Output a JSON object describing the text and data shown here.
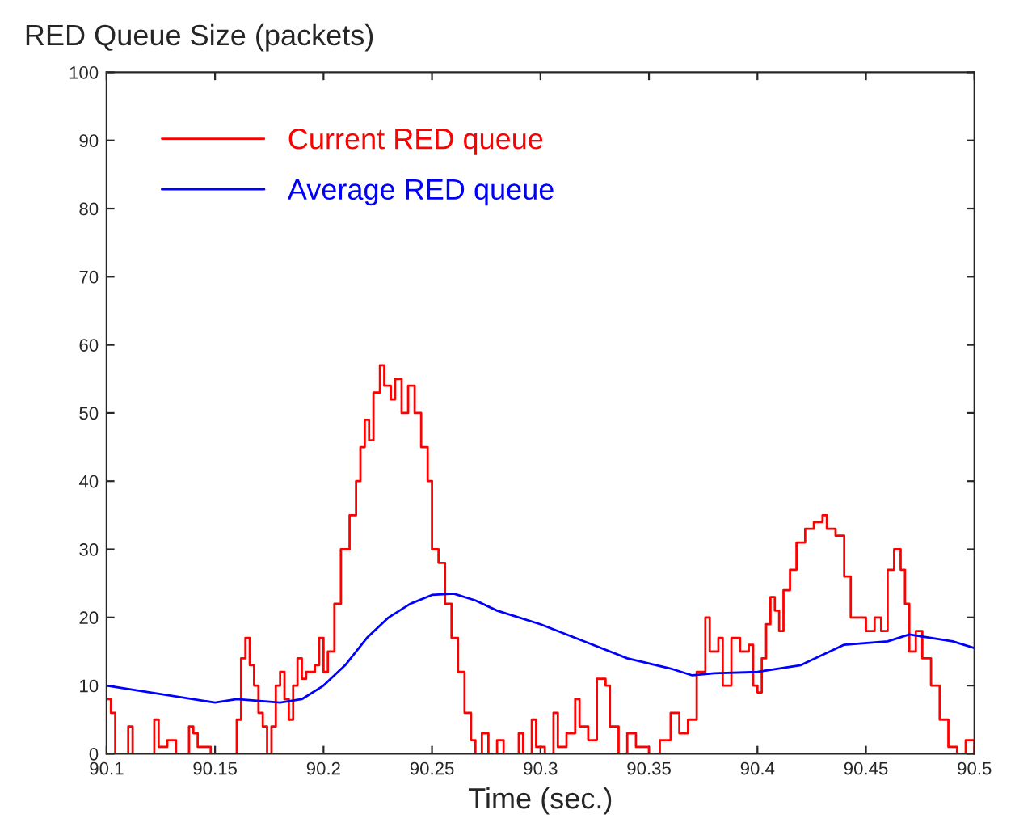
{
  "chart_data": {
    "type": "line",
    "title": "RED Queue Size (packets)",
    "xlabel": "Time (sec.)",
    "xlim": [
      90.1,
      90.5
    ],
    "ylim": [
      0,
      100
    ],
    "xticks": [
      90.1,
      90.15,
      90.2,
      90.25,
      90.3,
      90.35,
      90.4,
      90.45,
      90.5
    ],
    "yticks": [
      0,
      10,
      20,
      30,
      40,
      50,
      60,
      70,
      80,
      90,
      100
    ],
    "grid": false,
    "legend": "top left",
    "series": [
      {
        "name": "Current RED queue",
        "type": "step",
        "color": "#ff0000",
        "x": [
          90.1,
          90.102,
          90.104,
          90.108,
          90.11,
          90.112,
          90.118,
          90.122,
          90.124,
          90.128,
          90.132,
          90.138,
          90.14,
          90.142,
          90.148,
          90.158,
          90.16,
          90.162,
          90.164,
          90.166,
          90.168,
          90.17,
          90.172,
          90.174,
          90.176,
          90.178,
          90.18,
          90.182,
          90.184,
          90.186,
          90.188,
          90.19,
          90.192,
          90.196,
          90.198,
          90.2,
          90.202,
          90.205,
          90.208,
          90.212,
          90.215,
          90.217,
          90.219,
          90.221,
          90.223,
          90.226,
          90.228,
          90.231,
          90.233,
          90.236,
          90.239,
          90.242,
          90.245,
          90.248,
          90.25,
          90.253,
          90.256,
          90.259,
          90.262,
          90.265,
          90.268,
          90.27,
          90.273,
          90.276,
          90.28,
          90.283,
          90.287,
          90.29,
          90.292,
          90.296,
          90.298,
          90.302,
          90.306,
          90.308,
          90.312,
          90.316,
          90.318,
          90.322,
          90.326,
          90.33,
          90.332,
          90.336,
          90.34,
          90.344,
          90.35,
          90.355,
          90.36,
          90.364,
          90.368,
          90.372,
          90.376,
          90.378,
          90.382,
          90.384,
          90.388,
          90.392,
          90.396,
          90.398,
          90.4,
          90.402,
          90.404,
          90.406,
          90.408,
          90.41,
          90.412,
          90.415,
          90.418,
          90.422,
          90.426,
          90.43,
          90.432,
          90.436,
          90.44,
          90.443,
          90.446,
          90.45,
          90.454,
          90.457,
          90.46,
          90.463,
          90.466,
          90.468,
          90.47,
          90.473,
          90.476,
          90.48,
          90.484,
          90.488,
          90.492,
          90.496,
          90.5
        ],
        "values": [
          8,
          6,
          0,
          0,
          4,
          0,
          0,
          5,
          1,
          2,
          0,
          4,
          3,
          1,
          0,
          0,
          5,
          14,
          17,
          13,
          10,
          6,
          4,
          0,
          4,
          10,
          12,
          8,
          5,
          10,
          14,
          11,
          12,
          13,
          17,
          12,
          15,
          22,
          30,
          35,
          40,
          45,
          49,
          46,
          53,
          57,
          54,
          52,
          55,
          50,
          54,
          50,
          45,
          40,
          30,
          28,
          22,
          17,
          12,
          6,
          2,
          0,
          3,
          0,
          2,
          0,
          0,
          3,
          0,
          5,
          1,
          0,
          6,
          1,
          3,
          8,
          4,
          2,
          11,
          10,
          4,
          0,
          3,
          1,
          0,
          2,
          6,
          3,
          5,
          12,
          20,
          15,
          17,
          10,
          17,
          15,
          16,
          10,
          9,
          14,
          19,
          23,
          21,
          18,
          24,
          27,
          31,
          33,
          34,
          35,
          33,
          32,
          26,
          20,
          20,
          18,
          20,
          18,
          27,
          30,
          27,
          22,
          15,
          18,
          14,
          10,
          5,
          1,
          0,
          2,
          0
        ]
      },
      {
        "name": "Average RED queue",
        "color": "#0000ff",
        "x": [
          90.1,
          90.15,
          90.16,
          90.18,
          90.19,
          90.2,
          90.21,
          90.22,
          90.23,
          90.24,
          90.25,
          90.26,
          90.27,
          90.28,
          90.3,
          90.32,
          90.34,
          90.36,
          90.37,
          90.38,
          90.4,
          90.42,
          90.44,
          90.46,
          90.47,
          90.48,
          90.49,
          90.5
        ],
        "values": [
          10,
          7.5,
          8,
          7.5,
          8,
          10,
          13,
          17,
          20,
          22,
          23.3,
          23.5,
          22.5,
          21,
          19,
          16.5,
          14,
          12.5,
          11.5,
          11.8,
          12,
          13,
          16,
          16.5,
          17.5,
          17,
          16.5,
          15.5
        ]
      }
    ]
  }
}
